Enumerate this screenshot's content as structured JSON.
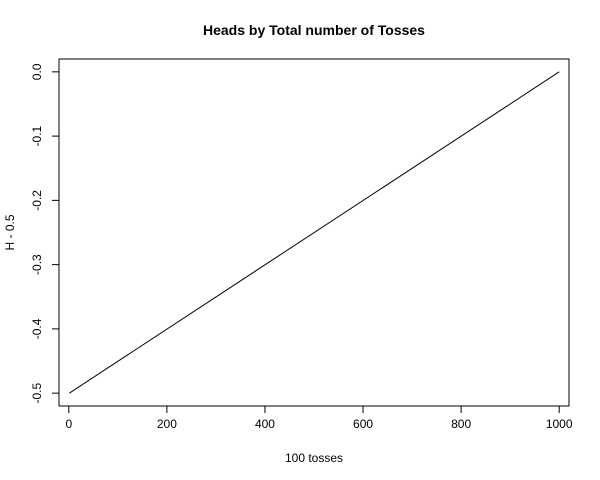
{
  "chart_data": {
    "type": "line",
    "title": "Heads by Total number of Tosses",
    "xlabel": "100 tosses",
    "ylabel": "H - 0.5",
    "xlim": [
      -20,
      1020
    ],
    "ylim": [
      -0.52,
      0.02
    ],
    "xticks": [
      0,
      200,
      400,
      600,
      800,
      1000
    ],
    "xtick_labels": [
      "0",
      "200",
      "400",
      "600",
      "800",
      "1000"
    ],
    "yticks": [
      -0.5,
      -0.4,
      -0.3,
      -0.2,
      -0.1,
      0.0
    ],
    "ytick_labels": [
      "-0.5",
      "-0.4",
      "-0.3",
      "-0.2",
      "-0.1",
      "0.0"
    ],
    "grid": false,
    "series": [
      {
        "x": [
          1,
          1000
        ],
        "y": [
          -0.5,
          0.0
        ],
        "color": "#000000"
      }
    ]
  }
}
